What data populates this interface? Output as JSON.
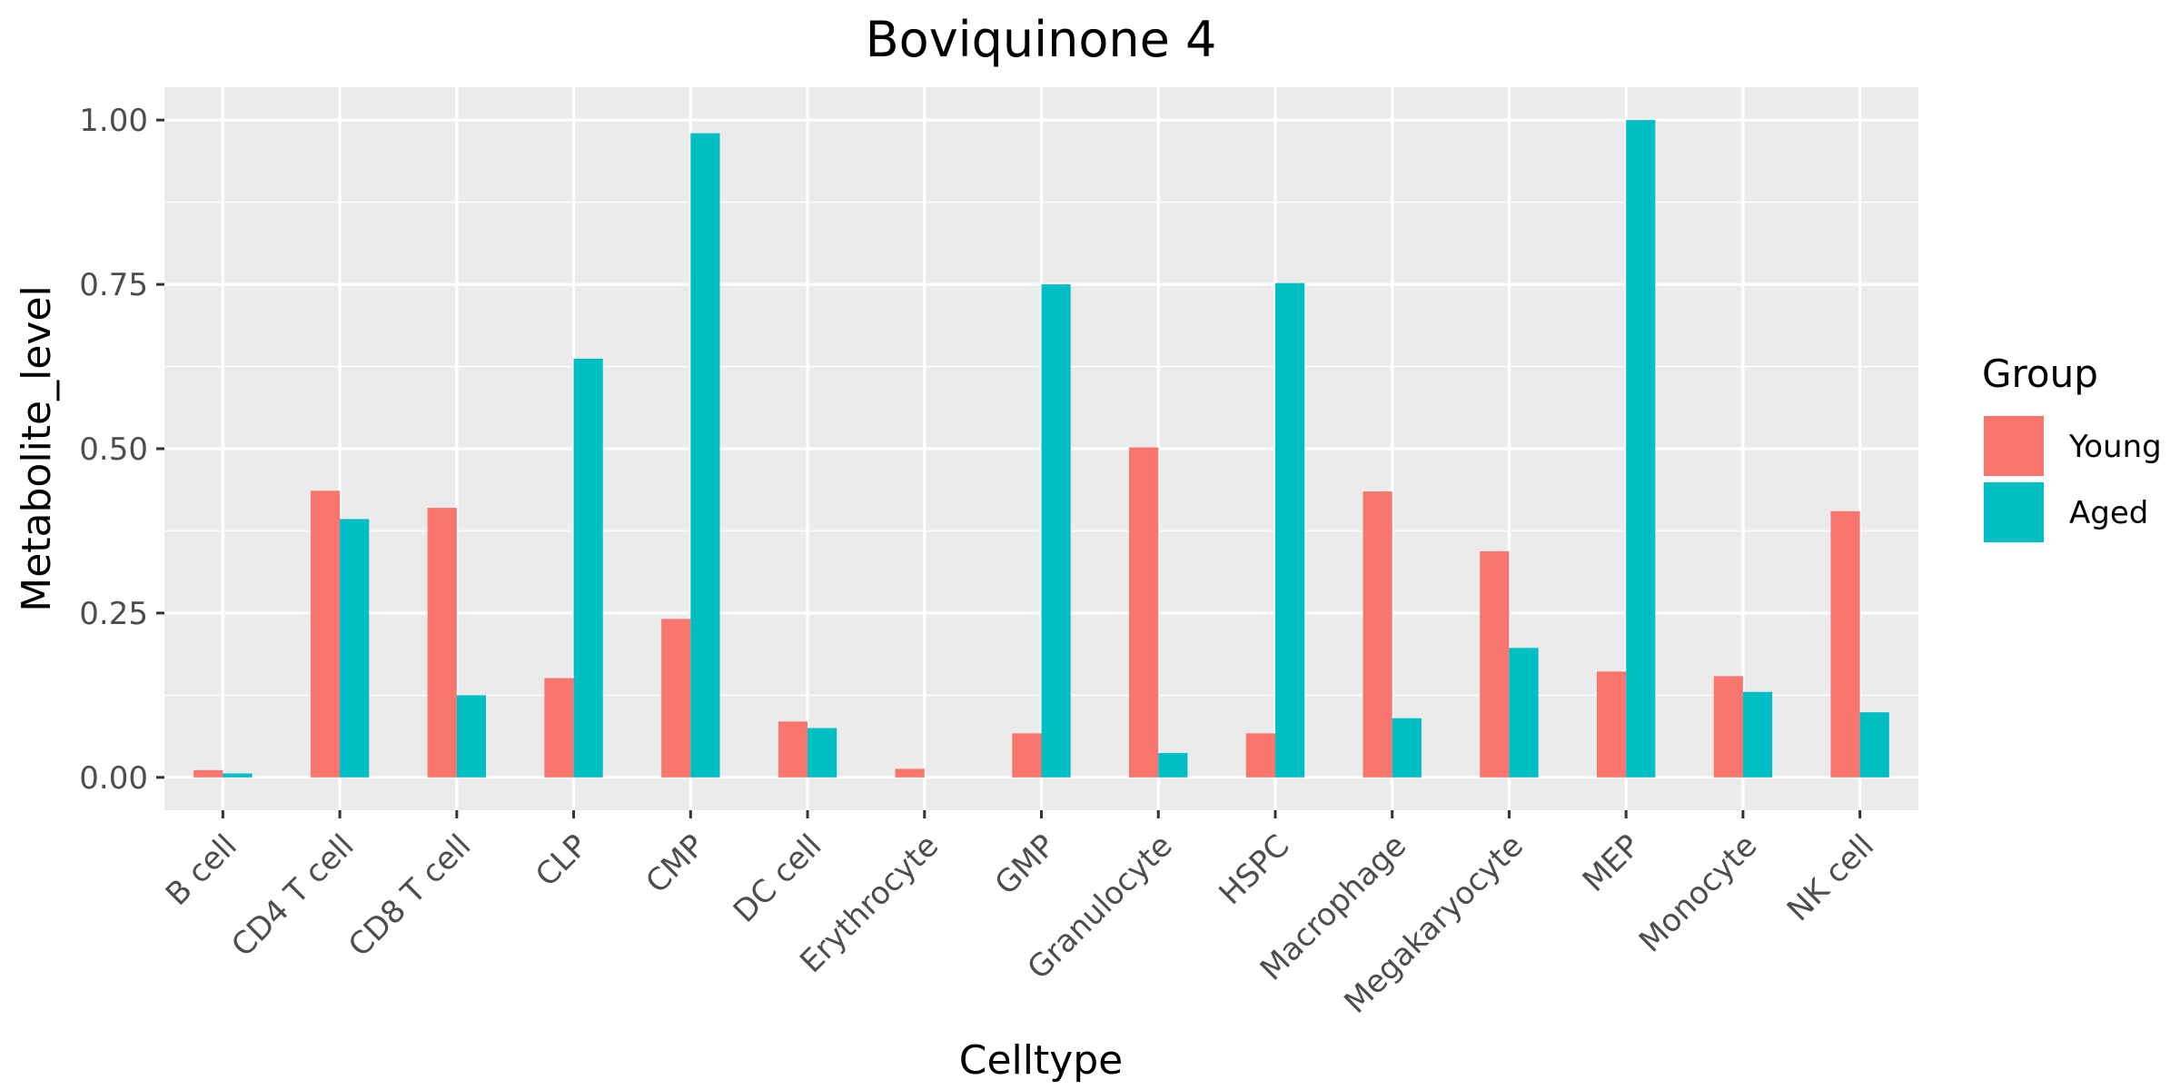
{
  "chart_data": {
    "type": "bar",
    "title": "Boviquinone 4",
    "xlabel": "Celltype",
    "ylabel": "Metabolite_level",
    "categories": [
      "B cell",
      "CD4 T cell",
      "CD8 T cell",
      "CLP",
      "CMP",
      "DC cell",
      "Erythrocyte",
      "GMP",
      "Granulocyte",
      "HSPC",
      "Macrophage",
      "Megakaryocyte",
      "MEP",
      "Monocyte",
      "NK cell"
    ],
    "series": [
      {
        "name": "Young",
        "color": "#F8766D",
        "values": [
          0.011,
          0.436,
          0.41,
          0.151,
          0.241,
          0.085,
          0.013,
          0.067,
          0.502,
          0.067,
          0.435,
          0.344,
          0.161,
          0.154,
          0.405
        ]
      },
      {
        "name": "Aged",
        "color": "#00BFC4",
        "values": [
          0.006,
          0.393,
          0.125,
          0.637,
          0.98,
          0.075,
          0.0,
          0.75,
          0.037,
          0.752,
          0.09,
          0.197,
          1.0,
          0.13,
          0.099
        ]
      }
    ],
    "yticks": [
      {
        "value": 0.0,
        "label": "0.00"
      },
      {
        "value": 0.25,
        "label": "0.25"
      },
      {
        "value": 0.5,
        "label": "0.50"
      },
      {
        "value": 0.75,
        "label": "0.75"
      },
      {
        "value": 1.0,
        "label": "1.00"
      }
    ],
    "ylim": [
      -0.05,
      1.05
    ],
    "legend": {
      "title": "Group",
      "placement": "right"
    },
    "grid": true,
    "panel_background": "#EBEBEB"
  }
}
